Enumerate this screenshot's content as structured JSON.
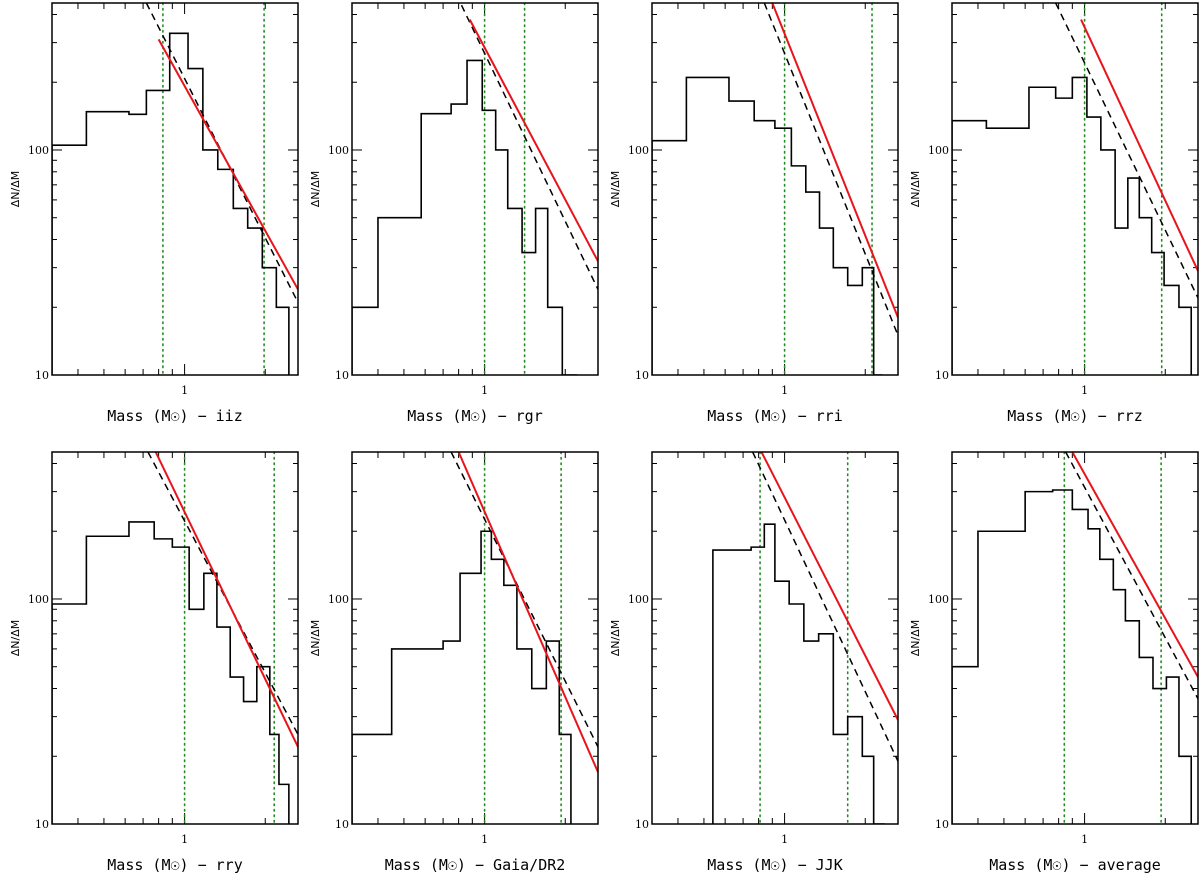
{
  "chart_data": [
    {
      "type": "line",
      "xlabel": "Mass (M☉) − iiz",
      "ylabel": "ΔN/ΔM",
      "xscale": "log",
      "yscale": "log",
      "xlim": [
        0.32,
        2.65
      ],
      "ylim": [
        10,
        450
      ],
      "xticks": [
        1
      ],
      "xtick_labels": [
        "1"
      ],
      "yticks": [
        10,
        100
      ],
      "ytick_labels": [
        "10",
        "100"
      ],
      "histogram": {
        "edges": [
          0.32,
          0.43,
          0.62,
          0.72,
          0.88,
          1.03,
          1.17,
          1.33,
          1.52,
          1.72,
          1.95,
          2.2,
          2.45
        ],
        "counts": [
          105,
          148,
          144,
          184,
          330,
          230,
          100,
          82,
          55,
          45,
          30,
          20
        ]
      },
      "fit_solid": {
        "x": [
          0.8,
          2.65
        ],
        "y": [
          310,
          24
        ],
        "color": "#e8141c",
        "style": "solid"
      },
      "fit_dashed": {
        "x": [
          0.72,
          2.65
        ],
        "y": [
          450,
          21
        ],
        "color": "#000000",
        "style": "dashed"
      },
      "mass_limits": [
        0.83,
        1.98
      ],
      "colors": {
        "histogram": "#000000",
        "limits": "#228b22"
      }
    },
    {
      "type": "line",
      "xlabel": "Mass (M☉) − rgr",
      "ylabel": "ΔN/ΔM",
      "xscale": "log",
      "yscale": "log",
      "xlim": [
        0.32,
        2.65
      ],
      "ylim": [
        10,
        450
      ],
      "xticks": [
        1
      ],
      "xtick_labels": [
        "1"
      ],
      "yticks": [
        10,
        100
      ],
      "ytick_labels": [
        "10",
        "100"
      ],
      "histogram": {
        "edges": [
          0.32,
          0.4,
          0.58,
          0.75,
          0.86,
          0.98,
          1.1,
          1.22,
          1.38,
          1.55,
          1.72,
          1.95,
          2.2
        ],
        "counts": [
          20,
          50,
          145,
          160,
          250,
          150,
          100,
          55,
          35,
          55,
          20,
          10
        ]
      },
      "fit_solid": {
        "x": [
          0.88,
          2.65
        ],
        "y": [
          380,
          32
        ],
        "color": "#e8141c",
        "style": "solid"
      },
      "fit_dashed": {
        "x": [
          0.82,
          2.65
        ],
        "y": [
          440,
          24
        ],
        "color": "#000000",
        "style": "dashed"
      },
      "mass_limits": [
        1.0,
        1.41
      ],
      "colors": {
        "histogram": "#000000",
        "limits": "#228b22"
      }
    },
    {
      "type": "line",
      "xlabel": "Mass (M☉) − rri",
      "ylabel": "ΔN/ΔM",
      "xscale": "log",
      "yscale": "log",
      "xlim": [
        0.32,
        2.65
      ],
      "ylim": [
        10,
        450
      ],
      "xticks": [
        1
      ],
      "xtick_labels": [
        "1"
      ],
      "yticks": [
        10,
        100
      ],
      "ytick_labels": [
        "10",
        "100"
      ],
      "histogram": {
        "edges": [
          0.32,
          0.43,
          0.62,
          0.77,
          0.92,
          1.06,
          1.2,
          1.35,
          1.52,
          1.72,
          1.95,
          2.15,
          2.3
        ],
        "counts": [
          110,
          210,
          165,
          135,
          125,
          85,
          65,
          45,
          30,
          25,
          30,
          10
        ]
      },
      "fit_solid": {
        "x": [
          0.9,
          2.65
        ],
        "y": [
          450,
          18
        ],
        "color": "#e8141c",
        "style": "solid"
      },
      "fit_dashed": {
        "x": [
          0.84,
          2.65
        ],
        "y": [
          450,
          15
        ],
        "color": "#000000",
        "style": "dashed"
      },
      "mass_limits": [
        1.0,
        2.12
      ],
      "colors": {
        "histogram": "#000000",
        "limits": "#228b22"
      }
    },
    {
      "type": "line",
      "xlabel": "Mass (M☉) − rrz",
      "ylabel": "ΔN/ΔM",
      "xscale": "log",
      "yscale": "log",
      "xlim": [
        0.32,
        2.65
      ],
      "ylim": [
        10,
        450
      ],
      "xticks": [
        1
      ],
      "xtick_labels": [
        "1"
      ],
      "yticks": [
        10,
        100
      ],
      "ytick_labels": [
        "10",
        "100"
      ],
      "histogram": {
        "edges": [
          0.32,
          0.43,
          0.62,
          0.78,
          0.9,
          1.02,
          1.15,
          1.3,
          1.45,
          1.6,
          1.78,
          1.98,
          2.25,
          2.5
        ],
        "counts": [
          135,
          125,
          190,
          170,
          210,
          140,
          100,
          45,
          75,
          50,
          35,
          25,
          20
        ]
      },
      "fit_solid": {
        "x": [
          0.97,
          2.65
        ],
        "y": [
          380,
          29
        ],
        "color": "#e8141c",
        "style": "solid"
      },
      "fit_dashed": {
        "x": [
          0.78,
          2.65
        ],
        "y": [
          450,
          22
        ],
        "color": "#000000",
        "style": "dashed"
      },
      "mass_limits": [
        1.0,
        1.94
      ],
      "colors": {
        "histogram": "#000000",
        "limits": "#228b22"
      }
    },
    {
      "type": "line",
      "xlabel": "Mass (M☉) − rry",
      "ylabel": "ΔN/ΔM",
      "xscale": "log",
      "yscale": "log",
      "xlim": [
        0.32,
        2.65
      ],
      "ylim": [
        10,
        450
      ],
      "xticks": [
        1
      ],
      "xtick_labels": [
        "1"
      ],
      "yticks": [
        10,
        100
      ],
      "ytick_labels": [
        "10",
        "100"
      ],
      "histogram": {
        "edges": [
          0.32,
          0.43,
          0.62,
          0.77,
          0.9,
          1.04,
          1.18,
          1.32,
          1.48,
          1.66,
          1.86,
          2.08,
          2.25,
          2.45
        ],
        "counts": [
          95,
          190,
          220,
          185,
          170,
          90,
          130,
          75,
          45,
          35,
          50,
          25,
          15
        ]
      },
      "fit_solid": {
        "x": [
          0.78,
          2.65
        ],
        "y": [
          450,
          22
        ],
        "color": "#e8141c",
        "style": "solid"
      },
      "fit_dashed": {
        "x": [
          0.73,
          2.65
        ],
        "y": [
          450,
          25
        ],
        "color": "#000000",
        "style": "dashed"
      },
      "mass_limits": [
        1.0,
        2.16
      ],
      "colors": {
        "histogram": "#000000",
        "limits": "#228b22"
      }
    },
    {
      "type": "line",
      "xlabel": "Mass (M☉) − Gaia/DR2",
      "ylabel": "ΔN/ΔM",
      "xscale": "log",
      "yscale": "log",
      "xlim": [
        0.32,
        2.65
      ],
      "ylim": [
        10,
        450
      ],
      "xticks": [
        1
      ],
      "xtick_labels": [
        "1"
      ],
      "yticks": [
        10,
        100
      ],
      "ytick_labels": [
        "10",
        "100"
      ],
      "histogram": {
        "edges": [
          0.32,
          0.45,
          0.7,
          0.81,
          0.97,
          1.06,
          1.18,
          1.32,
          1.5,
          1.7,
          1.9,
          2.1
        ],
        "counts": [
          25,
          60,
          65,
          130,
          200,
          150,
          115,
          60,
          40,
          65,
          25
        ]
      },
      "fit_solid": {
        "x": [
          0.8,
          2.65
        ],
        "y": [
          450,
          17
        ],
        "color": "#e8141c",
        "style": "solid"
      },
      "fit_dashed": {
        "x": [
          0.75,
          2.65
        ],
        "y": [
          450,
          22
        ],
        "color": "#000000",
        "style": "dashed"
      },
      "mass_limits": [
        1.0,
        1.93
      ],
      "colors": {
        "histogram": "#000000",
        "limits": "#228b22"
      }
    },
    {
      "type": "line",
      "xlabel": "Mass (M☉) − JJK",
      "ylabel": "ΔN/ΔM",
      "xscale": "log",
      "yscale": "log",
      "xlim": [
        0.32,
        2.65
      ],
      "ylim": [
        10,
        450
      ],
      "xticks": [
        1
      ],
      "xtick_labels": [
        "1"
      ],
      "yticks": [
        10,
        100
      ],
      "ytick_labels": [
        "10",
        "100"
      ],
      "histogram": {
        "edges": [
          0.54,
          0.68,
          0.75,
          0.84,
          0.92,
          1.04,
          1.18,
          1.34,
          1.52,
          1.72,
          1.95,
          2.15,
          2.35
        ],
        "counts": [
          165,
          165,
          170,
          215,
          120,
          95,
          65,
          70,
          25,
          30,
          20,
          10
        ]
      },
      "fit_solid": {
        "x": [
          0.82,
          2.65
        ],
        "y": [
          450,
          29
        ],
        "color": "#e8141c",
        "style": "solid"
      },
      "fit_dashed": {
        "x": [
          0.76,
          2.65
        ],
        "y": [
          450,
          19
        ],
        "color": "#000000",
        "style": "dashed"
      },
      "mass_limits": [
        0.81,
        1.72
      ],
      "colors": {
        "histogram": "#000000",
        "limits": "#228b22"
      }
    },
    {
      "type": "line",
      "xlabel": "Mass (M☉) − average",
      "ylabel": "ΔN/ΔM",
      "xscale": "log",
      "yscale": "log",
      "xlim": [
        0.32,
        2.65
      ],
      "ylim": [
        10,
        450
      ],
      "xticks": [
        1
      ],
      "xtick_labels": [
        "1"
      ],
      "yticks": [
        10,
        100
      ],
      "ytick_labels": [
        "10",
        "100"
      ],
      "histogram": {
        "edges": [
          0.32,
          0.4,
          0.6,
          0.76,
          0.9,
          1.03,
          1.14,
          1.28,
          1.42,
          1.6,
          1.8,
          2.02,
          2.25,
          2.5
        ],
        "counts": [
          50,
          200,
          300,
          305,
          250,
          205,
          150,
          110,
          80,
          55,
          40,
          45,
          20
        ]
      },
      "fit_solid": {
        "x": [
          0.9,
          2.65
        ],
        "y": [
          450,
          45
        ],
        "color": "#e8141c",
        "style": "solid"
      },
      "fit_dashed": {
        "x": [
          0.85,
          2.65
        ],
        "y": [
          450,
          36
        ],
        "color": "#000000",
        "style": "dashed"
      },
      "mass_limits": [
        0.84,
        1.93
      ],
      "colors": {
        "histogram": "#000000",
        "limits": "#228b22"
      }
    }
  ]
}
